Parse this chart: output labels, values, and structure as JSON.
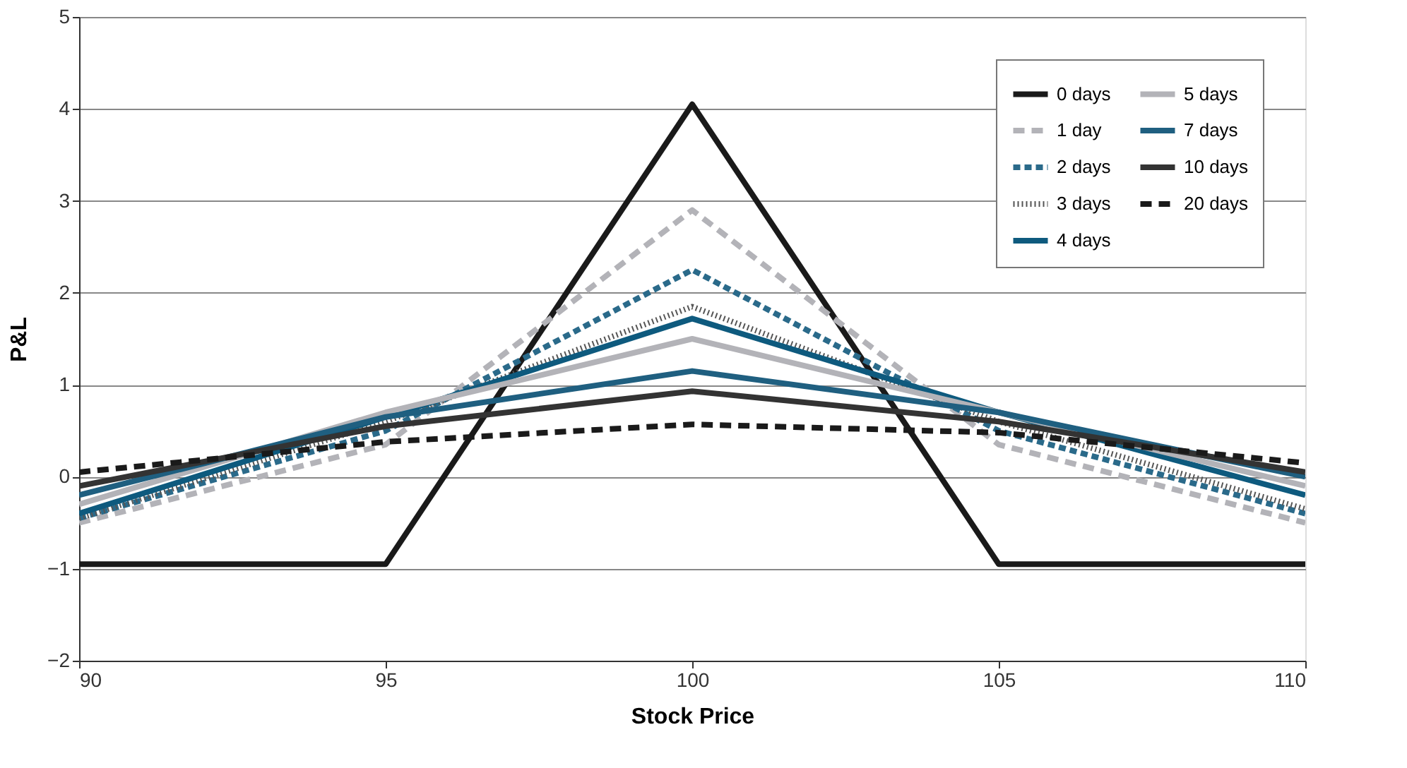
{
  "chart_data": {
    "type": "line",
    "xlabel": "Stock Price",
    "ylabel": "P&L",
    "x": [
      90,
      95,
      100,
      105,
      110
    ],
    "xlim": [
      90,
      110
    ],
    "xticks": [
      90,
      95,
      100,
      105,
      110
    ],
    "ylim": [
      -2,
      5
    ],
    "yticks": [
      -2,
      -1,
      0,
      1,
      2,
      3,
      4,
      5
    ],
    "grid": "y",
    "legend": "top right",
    "marker": "none",
    "series": [
      {
        "name": "0 days",
        "color": "#1a1a1a",
        "line_style": "solid",
        "values": [
          -0.95,
          -0.95,
          4.05,
          -0.95,
          -0.95
        ]
      },
      {
        "name": "1 day",
        "color": "#b3b3b8",
        "line_style": "dashed",
        "values": [
          -0.5,
          0.35,
          2.9,
          0.35,
          -0.5
        ]
      },
      {
        "name": "2 days",
        "color": "#2a6a8a",
        "line_style": "dashed",
        "values": [
          -0.45,
          0.5,
          2.25,
          0.5,
          -0.4
        ]
      },
      {
        "name": "3 days",
        "color": "#555555",
        "line_style": "dotted",
        "values": [
          -0.45,
          0.6,
          1.85,
          0.6,
          -0.35
        ]
      },
      {
        "name": "4 days",
        "color": "#0e5a7e",
        "line_style": "solid",
        "values": [
          -0.4,
          0.65,
          1.72,
          0.7,
          -0.2
        ]
      },
      {
        "name": "5 days",
        "color": "#b3b3b8",
        "line_style": "solid",
        "values": [
          -0.3,
          0.7,
          1.5,
          0.7,
          -0.1
        ]
      },
      {
        "name": "7 days",
        "color": "#1f5f80",
        "line_style": "solid",
        "values": [
          -0.2,
          0.65,
          1.15,
          0.7,
          0.0
        ]
      },
      {
        "name": "10 days",
        "color": "#333333",
        "line_style": "solid",
        "values": [
          -0.1,
          0.55,
          0.93,
          0.6,
          0.05
        ]
      },
      {
        "name": "20 days",
        "color": "#1a1a1a",
        "line_style": "dashed",
        "values": [
          0.05,
          0.38,
          0.57,
          0.48,
          0.15
        ]
      }
    ]
  }
}
